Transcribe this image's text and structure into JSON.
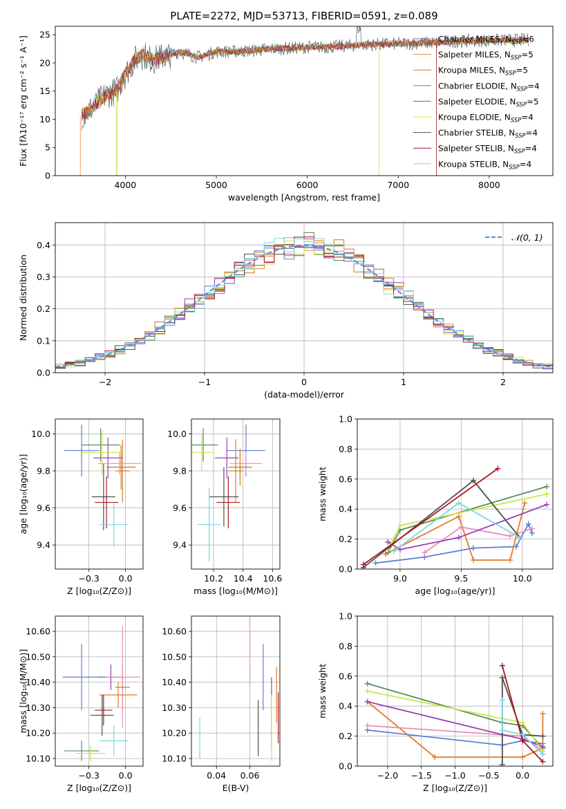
{
  "figure_title": "PLATE=2272, MJD=53713, FIBERID=0591, z=0.089",
  "colors": {
    "chabrier_miles": "#5b7fd4",
    "salpeter_miles": "#e8873a",
    "kroupa_miles": "#c8781e",
    "chabrier_elodie": "#5a8a5e",
    "salpeter_elodie": "#9b3fb5",
    "kroupa_elodie": "#cde64a",
    "chabrier_stelib": "#4d4d4d",
    "salpeter_stelib": "#a8171e",
    "kroupa_stelib": "#7dd7e0",
    "pink": "#e48fb6",
    "orange2": "#e07b25",
    "grid": "#b0b0b0"
  },
  "chart_data": [
    {
      "type": "line",
      "id": "spectrum",
      "title": "PLATE=2272, MJD=53713, FIBERID=0591, z=0.089",
      "xlabel": "wavelength [Angstrom, rest frame]",
      "ylabel": "Flux [fλ10⁻¹⁷ erg cm⁻² s⁻¹ A⁻¹]",
      "xlim": [
        3230,
        8700
      ],
      "ylim": [
        0,
        26.5
      ],
      "xticks": [
        4000,
        5000,
        6000,
        7000,
        8000
      ],
      "yticks": [
        0,
        5,
        10,
        15,
        20,
        25
      ],
      "grid": false,
      "legend": "top-right",
      "continuum": {
        "x": [
          3500,
          3600,
          3700,
          3800,
          3900,
          4000,
          4100,
          4200,
          4300,
          4400,
          4500,
          4600,
          4700,
          4800,
          4900,
          5000,
          5200,
          5400,
          5600,
          5800,
          6000,
          6200,
          6400,
          6600,
          6800,
          7000,
          7200,
          7400,
          7600,
          7800,
          8000,
          8200,
          8400
        ],
        "y": [
          10.5,
          11.5,
          13,
          14.5,
          15,
          18,
          20.5,
          21.5,
          20.5,
          21,
          21.5,
          22,
          21.5,
          21,
          21.5,
          22,
          22,
          22.2,
          22.5,
          22.6,
          22.8,
          22.8,
          23,
          23.2,
          23.3,
          23.4,
          23.5,
          23.6,
          23.8,
          23.9,
          24,
          24,
          24.1
        ]
      },
      "series": [
        {
          "name": "Chabrier MILES, N",
          "sub": "SSP",
          "suffix": "=6",
          "color": "#5b7fd4"
        },
        {
          "name": "Salpeter MILES, N",
          "sub": "SSP",
          "suffix": "=5",
          "color": "#e8873a"
        },
        {
          "name": "Kroupa MILES, N",
          "sub": "SSP",
          "suffix": "=5",
          "color": "#c8781e"
        },
        {
          "name": "Chabrier ELODIE, N",
          "sub": "SSP",
          "suffix": "=4",
          "color": "#5a8a5e"
        },
        {
          "name": "Salpeter ELODIE, N",
          "sub": "SSP",
          "suffix": "=5",
          "color": "#9b3fb5"
        },
        {
          "name": "Kroupa ELODIE, N",
          "sub": "SSP",
          "suffix": "=4",
          "color": "#cde64a"
        },
        {
          "name": "Chabrier STELIB, N",
          "sub": "SSP",
          "suffix": "=4",
          "color": "#4d4d4d"
        },
        {
          "name": "Salpeter STELIB, N",
          "sub": "SSP",
          "suffix": "=4",
          "color": "#a8171e"
        },
        {
          "name": "Kroupa STELIB, N",
          "sub": "SSP",
          "suffix": "=4",
          "color": "#7dd7e0"
        }
      ]
    },
    {
      "type": "bar",
      "id": "residuals",
      "xlabel": "(data-model)/error",
      "ylabel": "Normed distribution",
      "xlim": [
        -2.5,
        2.5
      ],
      "ylim": [
        0,
        0.47
      ],
      "xticks": [
        -2,
        -1,
        0,
        1,
        2
      ],
      "yticks": [
        0.0,
        0.1,
        0.2,
        0.3,
        0.4
      ],
      "grid": true,
      "legend": "top-right",
      "legend_label": "𝒩(0, 1)",
      "bin_width": 0.1
    },
    {
      "type": "scatter",
      "id": "z_age",
      "xlabel": "Z [log₁₀(Z/Z⊙)]",
      "ylabel": "age  [log₁₀(age/yr)]",
      "xlim": [
        -0.48,
        0.12
      ],
      "ylim": [
        9.27,
        10.08
      ],
      "xticks": [
        -0.25,
        0.0
      ],
      "yticks": [
        9.4,
        9.6,
        9.8,
        10.0
      ],
      "grid": true,
      "points": [
        {
          "x": -0.3,
          "y": 9.91,
          "xerr": 0.12,
          "yerr": 0.14,
          "color": "#5b7fd4"
        },
        {
          "x": -0.02,
          "y": 9.8,
          "xerr": 0.05,
          "yerr": 0.17,
          "color": "#e07b25"
        },
        {
          "x": -0.03,
          "y": 9.82,
          "xerr": 0.1,
          "yerr": 0.12,
          "color": "#c8781e"
        },
        {
          "x": -0.17,
          "y": 9.94,
          "xerr": 0.13,
          "yerr": 0.09,
          "color": "#5a8a5e"
        },
        {
          "x": -0.12,
          "y": 9.87,
          "xerr": 0.1,
          "yerr": 0.11,
          "color": "#9b3fb5"
        },
        {
          "x": -0.16,
          "y": 9.9,
          "xerr": 0.15,
          "yerr": 0.12,
          "color": "#cde64a"
        },
        {
          "x": -0.15,
          "y": 9.66,
          "xerr": 0.08,
          "yerr": 0.18,
          "color": "#4d4d4d"
        },
        {
          "x": -0.13,
          "y": 9.63,
          "xerr": 0.08,
          "yerr": 0.14,
          "color": "#a8171e"
        },
        {
          "x": -0.04,
          "y": 9.84,
          "xerr": 0.15,
          "yerr": 0.06,
          "color": "#e48fb6"
        },
        {
          "x": -0.08,
          "y": 9.51,
          "xerr": 0.1,
          "yerr": 0.12,
          "color": "#7dd7e0"
        }
      ]
    },
    {
      "type": "scatter",
      "id": "mass_age",
      "xlabel": "mass [log₁₀(M/M⊙)]",
      "ylabel": "",
      "xlim": [
        10.05,
        10.65
      ],
      "ylim": [
        9.27,
        10.08
      ],
      "xticks": [
        10.2,
        10.4,
        10.6
      ],
      "yticks": [
        9.4,
        9.6,
        9.8,
        10.0
      ],
      "grid": true,
      "points": [
        {
          "x": 10.42,
          "y": 9.91,
          "xerr": 0.13,
          "yerr": 0.14,
          "color": "#5b7fd4"
        },
        {
          "x": 10.35,
          "y": 9.8,
          "xerr": 0.05,
          "yerr": 0.17,
          "color": "#e07b25"
        },
        {
          "x": 10.38,
          "y": 9.82,
          "xerr": 0.08,
          "yerr": 0.1,
          "color": "#c8781e"
        },
        {
          "x": 10.13,
          "y": 9.94,
          "xerr": 0.1,
          "yerr": 0.09,
          "color": "#5a8a5e"
        },
        {
          "x": 10.29,
          "y": 9.87,
          "xerr": 0.08,
          "yerr": 0.11,
          "color": "#9b3fb5"
        },
        {
          "x": 10.12,
          "y": 9.9,
          "xerr": 0.08,
          "yerr": 0.1,
          "color": "#cde64a"
        },
        {
          "x": 10.27,
          "y": 9.66,
          "xerr": 0.1,
          "yerr": 0.16,
          "color": "#4d4d4d"
        },
        {
          "x": 10.3,
          "y": 9.63,
          "xerr": 0.08,
          "yerr": 0.14,
          "color": "#a8171e"
        },
        {
          "x": 10.42,
          "y": 9.84,
          "xerr": 0.11,
          "yerr": 0.06,
          "color": "#e48fb6"
        },
        {
          "x": 10.17,
          "y": 9.51,
          "xerr": 0.08,
          "yerr": 0.2,
          "color": "#7dd7e0"
        }
      ]
    },
    {
      "type": "line",
      "id": "age_weight",
      "xlabel": "age  [log₁₀(age/yr)]",
      "ylabel": "mass weight",
      "xlim": [
        8.65,
        10.25
      ],
      "ylim": [
        0.0,
        1.0
      ],
      "xticks": [
        9.0,
        9.5,
        10.0
      ],
      "yticks": [
        0.0,
        0.2,
        0.4,
        0.6,
        0.8,
        1.0
      ],
      "grid": true,
      "series": [
        {
          "color": "#5b7fd4",
          "x": [
            8.8,
            9.2,
            9.6,
            9.95,
            10.05,
            10.08
          ],
          "y": [
            0.04,
            0.08,
            0.14,
            0.15,
            0.3,
            0.24
          ]
        },
        {
          "color": "#e07b25",
          "x": [
            8.88,
            9.48,
            9.6,
            9.9,
            10.02
          ],
          "y": [
            0.1,
            0.35,
            0.06,
            0.06,
            0.44
          ]
        },
        {
          "color": "#e48fb6",
          "x": [
            9.2,
            9.5,
            9.9,
            10.08
          ],
          "y": [
            0.11,
            0.28,
            0.22,
            0.27
          ]
        },
        {
          "color": "#5a8a5e",
          "x": [
            8.9,
            9.0,
            10.2
          ],
          "y": [
            0.11,
            0.26,
            0.55
          ]
        },
        {
          "color": "#9b3fb5",
          "x": [
            8.9,
            9.0,
            9.48,
            10.2
          ],
          "y": [
            0.18,
            0.13,
            0.21,
            0.43
          ]
        },
        {
          "color": "#cde64a",
          "x": [
            8.9,
            9.0,
            10.2
          ],
          "y": [
            0.13,
            0.29,
            0.5
          ]
        },
        {
          "color": "#4d4d4d",
          "x": [
            8.7,
            9.6,
            9.98
          ],
          "y": [
            0.01,
            0.59,
            0.21
          ]
        },
        {
          "color": "#a8171e",
          "x": [
            8.7,
            9.8
          ],
          "y": [
            0.03,
            0.67
          ]
        },
        {
          "color": "#7dd7e0",
          "x": [
            8.95,
            9.48,
            9.98
          ],
          "y": [
            0.12,
            0.44,
            0.21
          ]
        }
      ]
    },
    {
      "type": "scatter",
      "id": "z_mass",
      "xlabel": "Z [log₁₀(Z/Z⊙)]",
      "ylabel": "mass [log₁₀(M/M⊙)]",
      "xlim": [
        -0.48,
        0.12
      ],
      "ylim": [
        10.07,
        10.66
      ],
      "xticks": [
        -0.25,
        0.0
      ],
      "yticks": [
        10.1,
        10.2,
        10.3,
        10.4,
        10.5,
        10.6
      ],
      "grid": true,
      "points": [
        {
          "x": -0.3,
          "y": 10.42,
          "xerr": 0.13,
          "yerr": 0.13,
          "color": "#5b7fd4"
        },
        {
          "x": -0.05,
          "y": 10.35,
          "xerr": 0.13,
          "yerr": 0.05,
          "color": "#e07b25"
        },
        {
          "x": -0.02,
          "y": 10.38,
          "xerr": 0.05,
          "yerr": 0.08,
          "color": "#c8781e"
        },
        {
          "x": -0.3,
          "y": 10.13,
          "xerr": 0.12,
          "yerr": 0.04,
          "color": "#5a8a5e"
        },
        {
          "x": -0.1,
          "y": 10.42,
          "xerr": 0.08,
          "yerr": 0.05,
          "color": "#9b3fb5"
        },
        {
          "x": -0.24,
          "y": 10.12,
          "xerr": 0.1,
          "yerr": 0.03,
          "color": "#cde64a"
        },
        {
          "x": -0.16,
          "y": 10.27,
          "xerr": 0.08,
          "yerr": 0.08,
          "color": "#4d4d4d"
        },
        {
          "x": -0.15,
          "y": 10.29,
          "xerr": 0.06,
          "yerr": 0.06,
          "color": "#a8171e"
        },
        {
          "x": -0.02,
          "y": 10.42,
          "xerr": 0.12,
          "yerr": 0.2,
          "color": "#e48fb6"
        },
        {
          "x": -0.08,
          "y": 10.17,
          "xerr": 0.1,
          "yerr": 0.06,
          "color": "#7dd7e0"
        }
      ]
    },
    {
      "type": "scatter",
      "id": "ebv_mass",
      "xlabel": "E(B-V)",
      "ylabel": "",
      "xlim": [
        0.025,
        0.078
      ],
      "ylim": [
        10.07,
        10.66
      ],
      "xticks": [
        0.04,
        0.06
      ],
      "yticks": [
        10.1,
        10.2,
        10.3,
        10.4,
        10.5,
        10.6
      ],
      "grid": true,
      "points": [
        {
          "x": 0.068,
          "y": 10.42,
          "xerr": 0,
          "yerr": 0.13,
          "color": "#5b7fd4"
        },
        {
          "x": 0.076,
          "y": 10.35,
          "xerr": 0,
          "yerr": 0.11,
          "color": "#e07b25"
        },
        {
          "x": 0.073,
          "y": 10.28,
          "xerr": 0,
          "yerr": 0.14,
          "color": "#9b3fb5"
        },
        {
          "x": 0.073,
          "y": 10.22,
          "xerr": 0,
          "yerr": 0.13,
          "color": "#cde64a"
        },
        {
          "x": 0.065,
          "y": 10.22,
          "xerr": 0,
          "yerr": 0.11,
          "color": "#4d4d4d"
        },
        {
          "x": 0.077,
          "y": 10.26,
          "xerr": 0,
          "yerr": 0.1,
          "color": "#a8171e"
        },
        {
          "x": 0.06,
          "y": 10.52,
          "xerr": 0,
          "yerr": 0.13,
          "color": "#e48fb6"
        },
        {
          "x": 0.03,
          "y": 10.18,
          "xerr": 0,
          "yerr": 0.08,
          "color": "#7dd7e0"
        }
      ]
    },
    {
      "type": "line",
      "id": "z_weight",
      "xlabel": "Z [log₁₀(Z/Z⊙)]",
      "ylabel": "mass weight",
      "xlim": [
        -2.45,
        0.45
      ],
      "ylim": [
        0.0,
        1.0
      ],
      "xticks": [
        -2.0,
        -1.5,
        -1.0,
        -0.5,
        0.0
      ],
      "yticks": [
        0.0,
        0.2,
        0.4,
        0.6,
        0.8,
        1.0
      ],
      "grid": true,
      "series": [
        {
          "color": "#5b7fd4",
          "x": [
            -2.3,
            -0.3,
            0.0,
            0.3,
            0.3
          ],
          "y": [
            0.24,
            0.14,
            0.17,
            0.15,
            0.08
          ]
        },
        {
          "color": "#e07b25",
          "x": [
            -2.3,
            -1.3,
            0.0,
            0.3,
            0.3
          ],
          "y": [
            0.43,
            0.06,
            0.06,
            0.12,
            0.35
          ]
        },
        {
          "color": "#e48fb6",
          "x": [
            -2.3,
            0.0,
            0.3
          ],
          "y": [
            0.27,
            0.2,
            0.1
          ]
        },
        {
          "color": "#5a8a5e",
          "x": [
            -2.3,
            -0.3,
            0.0,
            0.3
          ],
          "y": [
            0.55,
            0.29,
            0.27,
            0.12
          ]
        },
        {
          "color": "#9b3fb5",
          "x": [
            -2.3,
            -0.3,
            0.0,
            0.3
          ],
          "y": [
            0.43,
            0.21,
            0.18,
            0.13
          ]
        },
        {
          "color": "#cde64a",
          "x": [
            -2.3,
            0.0,
            0.3
          ],
          "y": [
            0.5,
            0.29,
            0.1
          ]
        },
        {
          "color": "#4d4d4d",
          "x": [
            -0.3,
            -0.3,
            0.0,
            0.3
          ],
          "y": [
            0.01,
            0.59,
            0.21,
            0.2
          ]
        },
        {
          "color": "#a8171e",
          "x": [
            -0.3,
            0.0,
            0.3
          ],
          "y": [
            0.67,
            0.17,
            0.03
          ]
        },
        {
          "color": "#7dd7e0",
          "x": [
            -0.3,
            -0.3,
            0.0,
            0.3
          ],
          "y": [
            0.44,
            0.24,
            0.21,
            0.08
          ]
        }
      ]
    }
  ]
}
